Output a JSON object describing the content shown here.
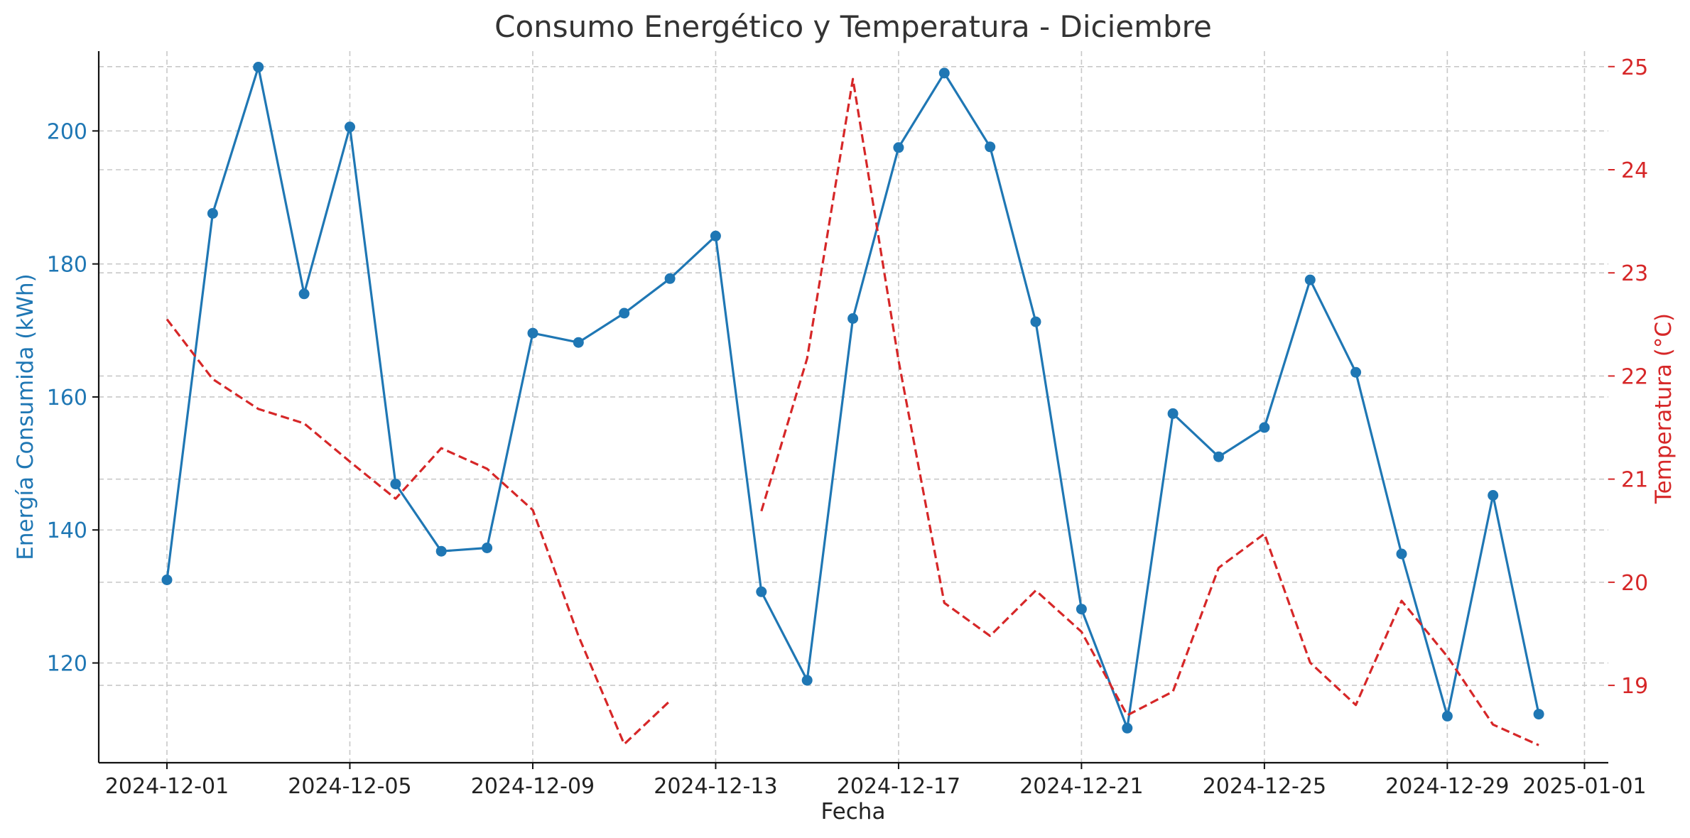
{
  "chart_data": {
    "type": "line",
    "title": "Consumo Energético y Temperatura - Diciembre",
    "xlabel": "Fecha",
    "ylabel_left": "Energía Consumida (kWh)",
    "ylabel_right": "Temperatura (°C)",
    "x_ticks": [
      "2024-12-01",
      "2024-12-05",
      "2024-12-09",
      "2024-12-13",
      "2024-12-17",
      "2024-12-21",
      "2024-12-25",
      "2024-12-29",
      "2025-01-01"
    ],
    "y_left_ticks": [
      120,
      140,
      160,
      180,
      200
    ],
    "y_right_ticks": [
      19,
      20,
      21,
      22,
      23,
      24,
      25
    ],
    "ylim_left": [
      105,
      212
    ],
    "ylim_right": [
      18.25,
      25.15
    ],
    "grid": true,
    "colors": {
      "energy": "#1f77b4",
      "temperature": "#d62728"
    },
    "dates": [
      "2024-12-01",
      "2024-12-02",
      "2024-12-03",
      "2024-12-04",
      "2024-12-05",
      "2024-12-06",
      "2024-12-07",
      "2024-12-08",
      "2024-12-09",
      "2024-12-10",
      "2024-12-11",
      "2024-12-12",
      "2024-12-13",
      "2024-12-14",
      "2024-12-15",
      "2024-12-16",
      "2024-12-17",
      "2024-12-18",
      "2024-12-19",
      "2024-12-20",
      "2024-12-21",
      "2024-12-22",
      "2024-12-23",
      "2024-12-24",
      "2024-12-25",
      "2024-12-26",
      "2024-12-27",
      "2024-12-28",
      "2024-12-29",
      "2024-12-30",
      "2024-12-31"
    ],
    "series": [
      {
        "axis": "left",
        "style": "solid-markers",
        "values": [
          132.5,
          187.6,
          209.6,
          175.5,
          200.6,
          146.9,
          136.8,
          137.3,
          169.6,
          168.2,
          172.6,
          177.8,
          184.2,
          130.7,
          117.4,
          171.8,
          197.5,
          208.7,
          197.6,
          171.3,
          128.1,
          110.2,
          157.5,
          151.0,
          155.4,
          177.6,
          163.7,
          136.4,
          112.0,
          145.2,
          112.3
        ]
      },
      {
        "axis": "right",
        "style": "dashed",
        "values": [
          22.55,
          21.97,
          21.68,
          21.54,
          21.17,
          20.81,
          21.3,
          21.1,
          20.7,
          19.48,
          18.43,
          18.85,
          null,
          20.69,
          22.17,
          24.88,
          22.15,
          19.8,
          19.48,
          19.92,
          19.52,
          18.71,
          18.94,
          20.14,
          20.47,
          19.22,
          18.81,
          19.82,
          19.28,
          18.62,
          18.42
        ]
      }
    ]
  }
}
